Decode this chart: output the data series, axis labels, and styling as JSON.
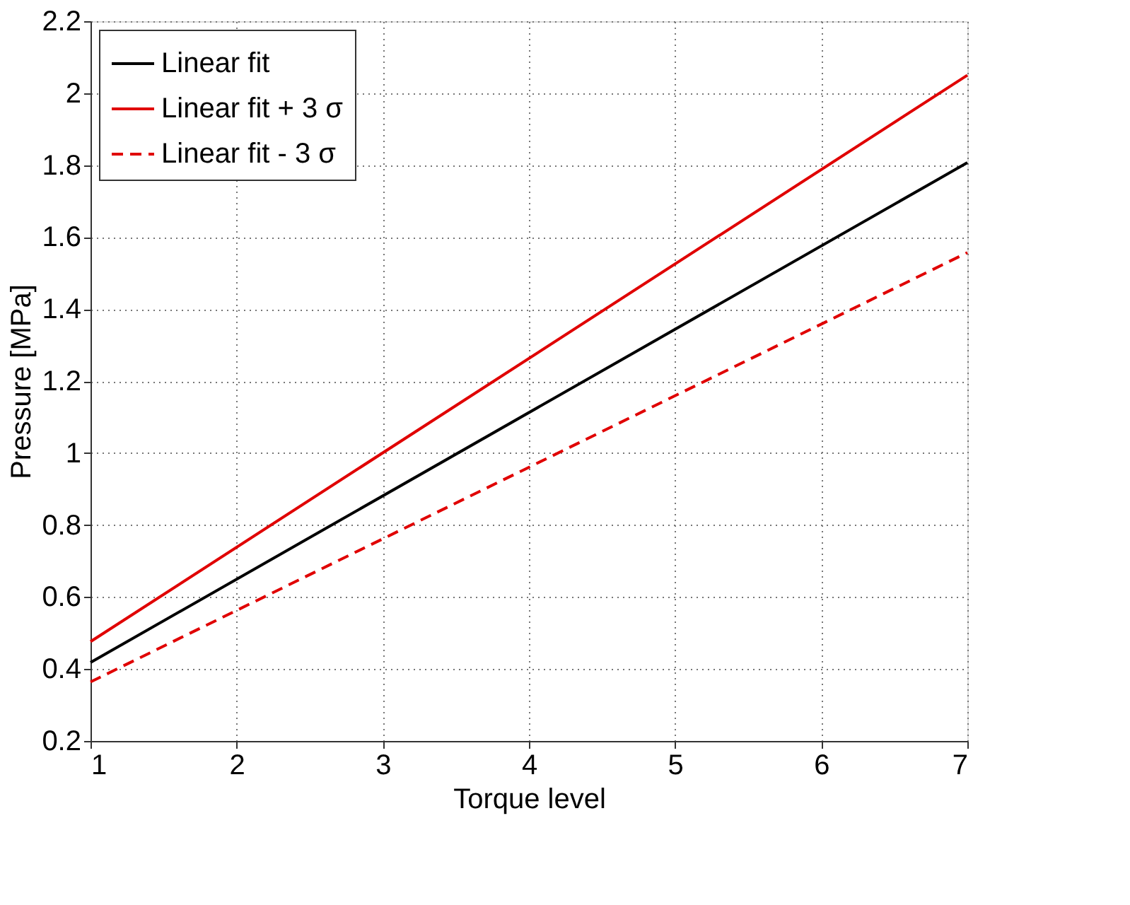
{
  "chart_data": {
    "type": "line",
    "xlabel": "Torque level",
    "ylabel": "Pressure [MPa]",
    "x": [
      1,
      7
    ],
    "series": [
      {
        "name": "Linear fit",
        "color": "#000000",
        "values": [
          0.418,
          1.807
        ],
        "line_style": "solid"
      },
      {
        "name": "Linear fit + 3 σ",
        "color": "#e00000",
        "values": [
          0.476,
          2.05
        ],
        "line_style": "solid"
      },
      {
        "name": "Linear fit - 3 σ",
        "color": "#e00000",
        "values": [
          0.364,
          1.557
        ],
        "line_style": "dashed"
      }
    ],
    "xlim": [
      1,
      7
    ],
    "xticks": [
      1,
      2,
      3,
      4,
      5,
      6,
      7
    ],
    "ylim": [
      0.2,
      2.2
    ],
    "yticks": [
      0.2,
      0.4,
      0.6,
      0.8,
      1,
      1.2,
      1.4,
      1.6,
      1.8,
      2,
      2.2
    ],
    "grid": true,
    "legend": "top left",
    "marker": "none"
  }
}
